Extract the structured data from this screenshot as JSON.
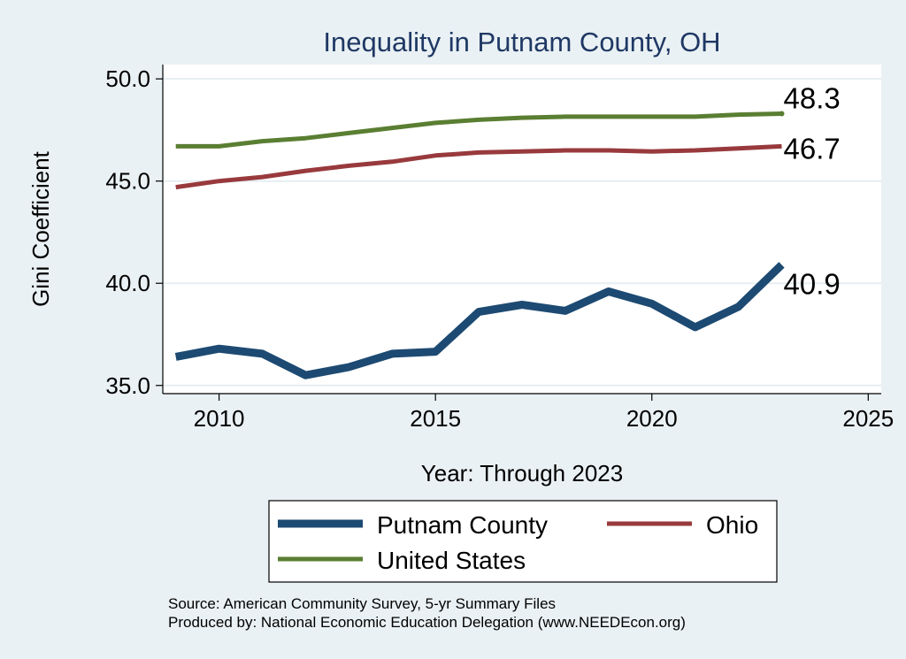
{
  "chart_data": {
    "type": "line",
    "title": "Inequality in Putnam County, OH",
    "xlabel": "Year: Through 2023",
    "ylabel": "Gini Coefficient",
    "xlim": [
      2008.7,
      2025.3
    ],
    "ylim": [
      34.6,
      50.7
    ],
    "xticks": [
      2010,
      2015,
      2020,
      2025
    ],
    "yticks": [
      35.0,
      40.0,
      45.0,
      50.0
    ],
    "ytick_labels": [
      "35.0",
      "40.0",
      "45.0",
      "50.0"
    ],
    "grid": true,
    "legend_position": "bottom",
    "x": [
      2009,
      2010,
      2011,
      2012,
      2013,
      2014,
      2015,
      2016,
      2017,
      2018,
      2019,
      2020,
      2021,
      2022,
      2023
    ],
    "series": [
      {
        "name": "Putnam County",
        "color": "#1d4a72",
        "values": [
          36.4,
          36.8,
          36.55,
          35.5,
          35.9,
          36.55,
          36.65,
          38.6,
          38.95,
          38.65,
          39.6,
          39.0,
          37.85,
          38.85,
          40.9
        ],
        "end_label": "40.9"
      },
      {
        "name": "Ohio",
        "color": "#983a3d",
        "values": [
          44.7,
          45.0,
          45.2,
          45.5,
          45.75,
          45.95,
          46.25,
          46.4,
          46.45,
          46.5,
          46.5,
          46.45,
          46.5,
          46.6,
          46.7
        ],
        "end_label": "46.7"
      },
      {
        "name": "United States",
        "color": "#5a7e32",
        "values": [
          46.7,
          46.7,
          46.95,
          47.1,
          47.35,
          47.6,
          47.85,
          48.0,
          48.1,
          48.15,
          48.15,
          48.15,
          48.15,
          48.25,
          48.3
        ],
        "end_label": "48.3"
      }
    ],
    "legend": [
      "Putnam County",
      "Ohio",
      "United States"
    ],
    "source_lines": [
      "Source: American Community Survey, 5-yr Summary Files",
      "Produced by: National Economic Education Delegation (www.NEEDEcon.org)"
    ]
  }
}
